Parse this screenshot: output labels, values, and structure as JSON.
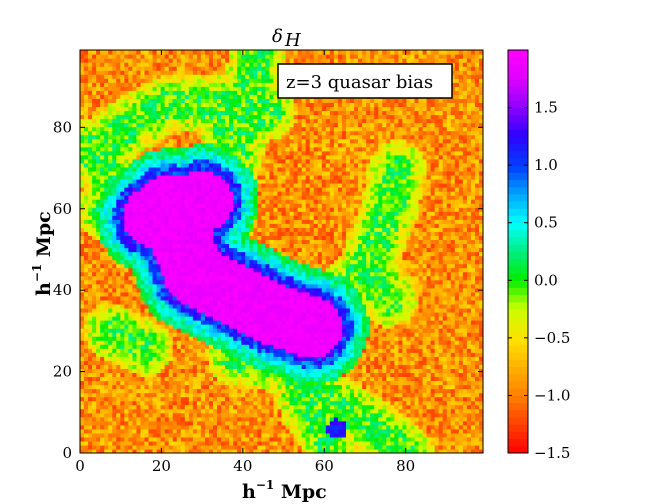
{
  "chart_data": {
    "type": "heatmap",
    "title": "δ",
    "title_subscript": "H",
    "annotation": "z=3 quasar bias",
    "xlabel_base": "h",
    "xlabel_exp": "−1",
    "xlabel_unit": " Mpc",
    "ylabel_base": "h",
    "ylabel_exp": "−1",
    "ylabel_unit": " Mpc",
    "xlim": [
      0,
      99
    ],
    "ylim": [
      0,
      99
    ],
    "x_ticks": [
      0,
      20,
      40,
      60,
      80
    ],
    "x_tick_labels": [
      "0",
      "20",
      "40",
      "60",
      "80"
    ],
    "y_ticks": [
      0,
      20,
      40,
      60,
      80
    ],
    "y_tick_labels": [
      "0",
      "20",
      "40",
      "60",
      "80"
    ],
    "colorbar": {
      "range": [
        -1.5,
        2.0
      ],
      "ticks": [
        -1.5,
        -1.0,
        -0.5,
        0.0,
        0.5,
        1.0,
        1.5
      ],
      "tick_labels": [
        "−1.5",
        "−1.0",
        "−0.5",
        "0.0",
        "0.5",
        "1.0",
        "1.5"
      ],
      "colormap": "gist_rainbow",
      "colors": {
        "low": "#ff0000",
        "mid_low": "#ffff00",
        "zero": "#00ee00",
        "mid_high": "#00ffff",
        "high1": "#0000ff",
        "top": "#ff00ff"
      }
    },
    "field_description_regions": {
      "void_level": -0.9,
      "filament_level": 0.0,
      "cluster_level": 1.9
    },
    "grid": false
  }
}
